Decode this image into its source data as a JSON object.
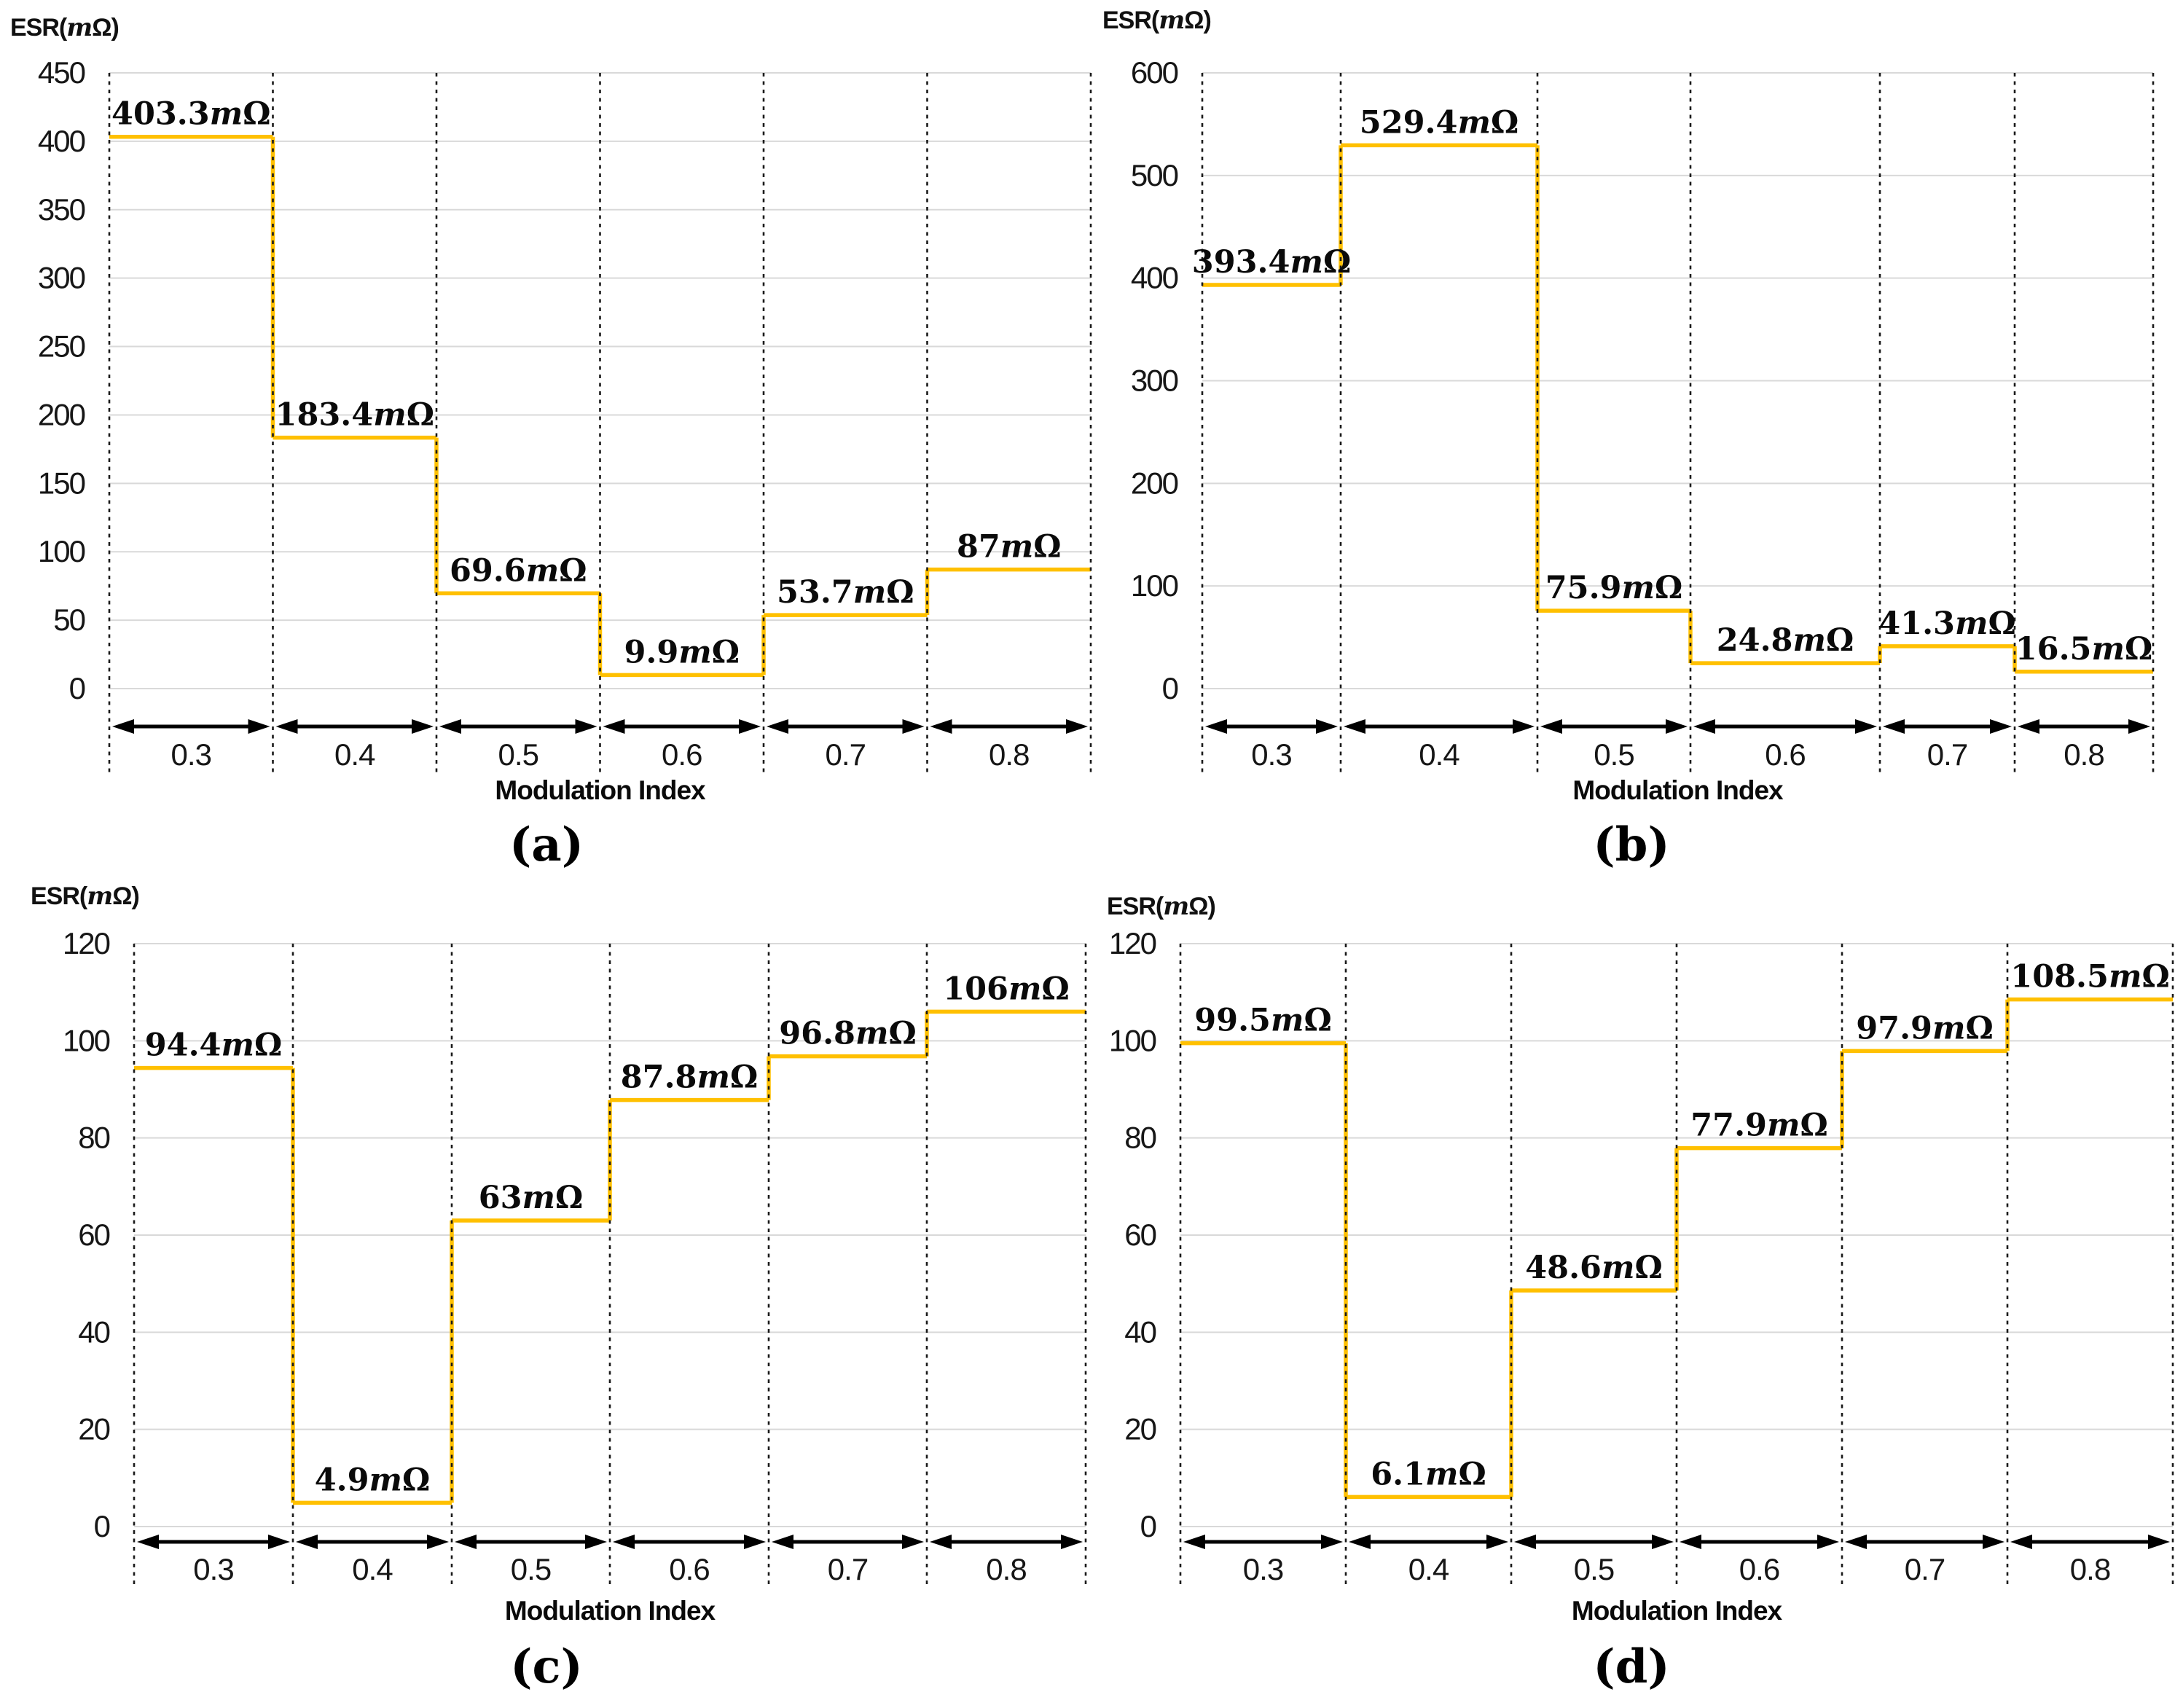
{
  "figure": {
    "background": "#ffffff",
    "line_color": "#FFC000",
    "grid_color": "#D9D9D9",
    "dotted_color": "#1a1a1a",
    "arrow_color": "#000000",
    "unit": "mΩ"
  },
  "chart_data": [
    {
      "id": "a",
      "type": "step-line",
      "caption": "(a)",
      "ylabel": {
        "pre": "ESR(",
        "m": "m",
        "post": "Ω)"
      },
      "xlabel": "Modulation Index",
      "categories": [
        "0.3",
        "0.4",
        "0.5",
        "0.6",
        "0.7",
        "0.8"
      ],
      "values": [
        403.3,
        183.4,
        69.6,
        9.9,
        53.7,
        87
      ],
      "labels": [
        "403.3mΩ",
        "183.4mΩ",
        "69.6mΩ",
        "9.9mΩ",
        "53.7mΩ",
        "87mΩ"
      ],
      "ylim": [
        0,
        450
      ],
      "yticks": [
        450,
        400,
        350,
        300,
        250,
        200,
        150,
        100,
        50,
        0
      ],
      "grid": true,
      "legend": false
    },
    {
      "id": "b",
      "type": "step-line",
      "caption": "(b)",
      "ylabel": {
        "pre": "ESR(",
        "m": "m",
        "post": "Ω)"
      },
      "xlabel": "Modulation Index",
      "categories": [
        "0.3",
        "0.4",
        "0.5",
        "0.6",
        "0.7",
        "0.8"
      ],
      "values": [
        393.4,
        529.4,
        75.9,
        24.8,
        41.3,
        16.5
      ],
      "labels": [
        "393.4mΩ",
        "529.4mΩ",
        "75.9mΩ",
        "24.8mΩ",
        "41.3mΩ",
        "16.5mΩ"
      ],
      "ylim": [
        0,
        600
      ],
      "yticks": [
        600,
        500,
        400,
        300,
        200,
        100,
        0
      ],
      "grid": true,
      "legend": false
    },
    {
      "id": "c",
      "type": "step-line",
      "caption": "(c)",
      "ylabel": {
        "pre": "ESR(",
        "m": "m",
        "post": "Ω)"
      },
      "xlabel": "Modulation Index",
      "categories": [
        "0.3",
        "0.4",
        "0.5",
        "0.6",
        "0.7",
        "0.8"
      ],
      "values": [
        94.4,
        4.9,
        63,
        87.8,
        96.8,
        106
      ],
      "labels": [
        "94.4mΩ",
        "4.9mΩ",
        "63mΩ",
        "87.8mΩ",
        "96.8mΩ",
        "106mΩ"
      ],
      "ylim": [
        0,
        120
      ],
      "yticks": [
        120,
        100,
        80,
        60,
        40,
        20,
        0
      ],
      "grid": true,
      "legend": false
    },
    {
      "id": "d",
      "type": "step-line",
      "caption": "(d)",
      "ylabel": {
        "pre": "ESR(",
        "m": "m",
        "post": "Ω)"
      },
      "xlabel": "Modulation Index",
      "categories": [
        "0.3",
        "0.4",
        "0.5",
        "0.6",
        "0.7",
        "0.8"
      ],
      "values": [
        99.5,
        6.1,
        48.6,
        77.9,
        97.9,
        108.5
      ],
      "labels": [
        "99.5mΩ",
        "6.1mΩ",
        "48.6mΩ",
        "77.9mΩ",
        "97.9mΩ",
        "108.5mΩ"
      ],
      "ylim": [
        0,
        120
      ],
      "yticks": [
        120,
        100,
        80,
        60,
        40,
        20,
        0
      ],
      "grid": true,
      "legend": false
    }
  ]
}
